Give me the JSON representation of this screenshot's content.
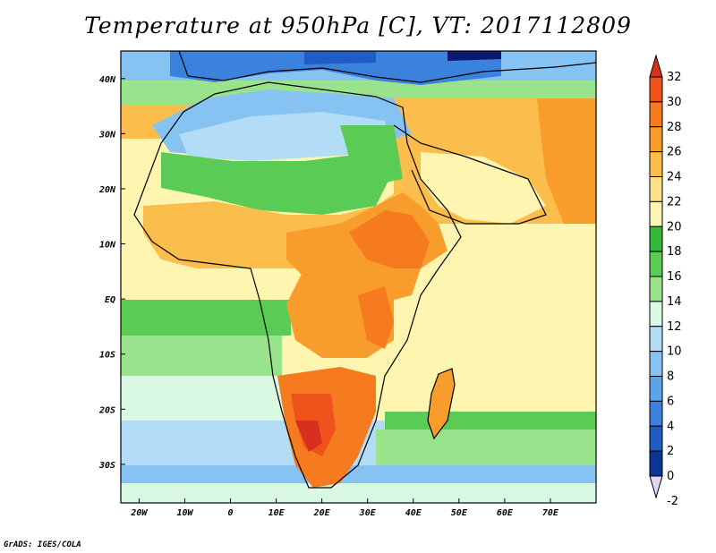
{
  "title": "Temperature at 950hPa [C], VT: 2017112809",
  "credit": "GrADS: IGES/COLA",
  "map": {
    "lon_range": [
      -24,
      80
    ],
    "lat_range": [
      -37,
      45
    ],
    "lon_ticks": [
      "20W",
      "10W",
      "0",
      "10E",
      "20E",
      "30E",
      "40E",
      "50E",
      "60E",
      "70E"
    ],
    "lat_ticks": [
      "40N",
      "30N",
      "20N",
      "10N",
      "EQ",
      "10S",
      "20S",
      "30S"
    ]
  },
  "colorbar": {
    "levels": [
      "32",
      "30",
      "28",
      "26",
      "24",
      "22",
      "20",
      "18",
      "16",
      "14",
      "12",
      "10",
      "8",
      "6",
      "4",
      "2",
      "0",
      "-2"
    ],
    "colors": [
      "#d7301f",
      "#f0521c",
      "#f57b1e",
      "#f89c2c",
      "#fbbd4b",
      "#fde08a",
      "#fdf5b0",
      "#33b93b",
      "#5acb55",
      "#9ae38d",
      "#d9f9e3",
      "#b3dcf7",
      "#86c2f2",
      "#5da3e8",
      "#3b82dc",
      "#1f5cc4",
      "#0a3595",
      "#08196e"
    ]
  }
}
